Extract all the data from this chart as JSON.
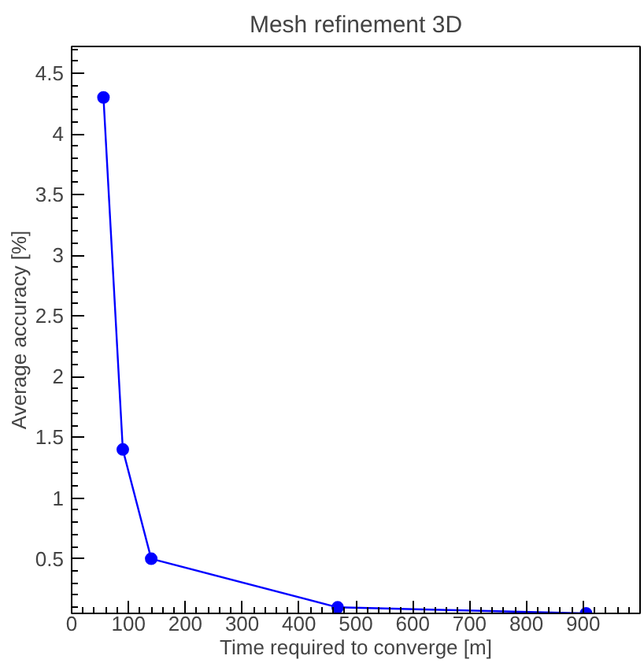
{
  "chart_data": {
    "type": "line",
    "title": "Mesh refinement 3D",
    "xlabel": "Time required to converge [m]",
    "ylabel": "Average accuracy [%]",
    "x": [
      56,
      90,
      140,
      468,
      905
    ],
    "series": [
      {
        "color": "#0000ff",
        "values": [
          4.3,
          1.4,
          0.5,
          0.1,
          0.05
        ]
      }
    ],
    "xlim": [
      0,
      1000
    ],
    "xticks": [
      0,
      100,
      200,
      300,
      400,
      500,
      600,
      700,
      800,
      900
    ],
    "ylim": [
      0.05,
      4.72
    ],
    "yticks": [
      0.5,
      1,
      1.5,
      2,
      2.5,
      3,
      3.5,
      4,
      4.5
    ],
    "marker": "circle",
    "line_style": "solid"
  }
}
